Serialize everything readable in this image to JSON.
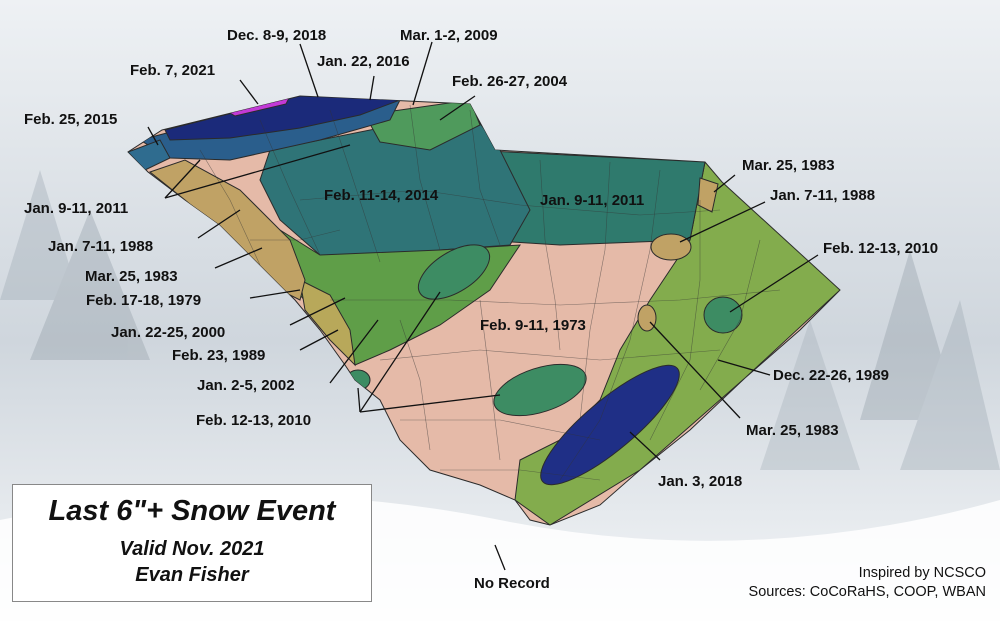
{
  "title": "Last 6\"+ Snow Event",
  "valid": "Valid Nov. 2021",
  "author": "Evan Fisher",
  "credits": {
    "inspired": "Inspired by NCSCO",
    "sources": "Sources: CoCoRaHS, COOP, WBAN"
  },
  "colors": {
    "dec_2018": "#1b2a7a",
    "feb_2021": "#c23ad6",
    "jan_2016": "#2a5e8c",
    "mar_2009": "#4f9a5c",
    "feb_2014": "#2f7477",
    "jan_2011": "#2f7a6d",
    "feb_1973": "#e5baa8",
    "green_light": "#83ac4d",
    "green_mid": "#5f9e48",
    "tan": "#c0a265",
    "tan_light": "#b8a85a",
    "feb_2010": "#3d8c63",
    "jan_2018": "#1f2f86",
    "no_record": "#9a9a9a"
  },
  "labels": [
    "Dec. 8-9, 2018",
    "Mar. 1-2, 2009",
    "Jan. 22, 2016",
    "Feb. 7, 2021",
    "Feb. 26-27, 2004",
    "Feb. 25, 2015",
    "Mar. 25, 1983",
    "Jan. 7-11, 1988",
    "Feb. 11-14, 2014",
    "Jan. 9-11, 2011",
    "Jan. 9-11, 2011",
    "Feb. 12-13, 2010",
    "Jan. 7-11, 1988",
    "Mar. 25, 1983",
    "Feb. 17-18, 1979",
    "Jan. 22-25, 2000",
    "Feb. 9-11, 1973",
    "Feb. 23, 1989",
    "Dec. 22-26, 1989",
    "Jan. 2-5, 2002",
    "Feb. 12-13, 2010",
    "Mar. 25, 1983",
    "Jan. 3, 2018",
    "No Record"
  ]
}
